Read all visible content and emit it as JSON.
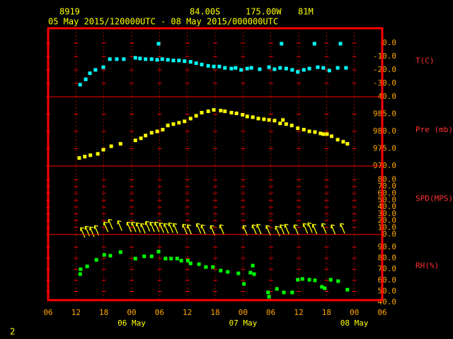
{
  "header": {
    "station": "8919",
    "lat": "84.00S",
    "lon": "175.00W",
    "elev": "81M",
    "period": "05 May 2015/120000UTC - 08 May 2015/000000UTC",
    "page": "2"
  },
  "chart_data": [
    {
      "type": "scatter",
      "ylabel": "T(C)",
      "color": "#00ffff",
      "xlim": [
        0,
        72
      ],
      "ylim": [
        -40,
        11
      ],
      "yticks": [
        {
          "value": 0,
          "label": "0.0"
        },
        {
          "value": -10,
          "label": "-10.0"
        },
        {
          "value": -20,
          "label": "-20.0"
        },
        {
          "value": -30,
          "label": "-30.0"
        },
        {
          "value": -40,
          "label": "-40.0"
        }
      ],
      "x": [
        6.9,
        8.1,
        9,
        10.2,
        11.9,
        13.3,
        14.8,
        16.3,
        18.8,
        19.8,
        21,
        22.3,
        23.5,
        23.8,
        24.6,
        25.8,
        27,
        28.2,
        29.4,
        30.7,
        31.9,
        33.1,
        34.5,
        35.7,
        36.9,
        38.1,
        39.5,
        40.4,
        41.6,
        42.9,
        43.8,
        45.6,
        47.6,
        48.8,
        50,
        50.3,
        51.3,
        52.6,
        53.8,
        55.1,
        56.3,
        57.4,
        58.1,
        59.3,
        60.6,
        62.4,
        63,
        64.2
      ],
      "values": [
        -31,
        -27,
        -22.5,
        -20,
        -18,
        -12,
        -12,
        -12,
        -11,
        -11.5,
        -12,
        -12,
        -12.5,
        -0.5,
        -12,
        -12.5,
        -13,
        -13,
        -13.5,
        -14,
        -15,
        -16,
        -17,
        -17.5,
        -17.5,
        -18.5,
        -19,
        -18.5,
        -20,
        -19,
        -18.5,
        -19.5,
        -18,
        -19.5,
        -18.5,
        -0.5,
        -19,
        -20,
        -21.5,
        -20,
        -19,
        -0.5,
        -18,
        -18.5,
        -20.5,
        -18.5,
        -0.5,
        -18.5
      ]
    },
    {
      "type": "scatter",
      "ylabel": "Pre (mb)",
      "color": "#ffff00",
      "xlim": [
        0,
        72
      ],
      "ylim": [
        970,
        990
      ],
      "yticks": [
        {
          "value": 985,
          "label": "985.0"
        },
        {
          "value": 980,
          "label": "980.0"
        },
        {
          "value": 975,
          "label": "975.0"
        },
        {
          "value": 970,
          "label": "970.0"
        }
      ],
      "x": [
        6.7,
        7.9,
        9.1,
        10.7,
        11.9,
        13.6,
        15.6,
        18.8,
        20,
        21,
        22.3,
        23.5,
        24.7,
        25.8,
        27,
        28.2,
        29.4,
        30.7,
        31.9,
        33.1,
        34.5,
        35.7,
        37.2,
        38.1,
        39.5,
        40.6,
        41.9,
        42.9,
        44.1,
        45.3,
        46.5,
        47.6,
        48.8,
        50,
        50.6,
        51.3,
        52.5,
        53.8,
        55.1,
        56.3,
        57.5,
        58.7,
        59.3,
        60.1,
        61.1,
        62.4,
        63.6,
        64.5
      ],
      "values": [
        972.3,
        972.7,
        973.1,
        973.5,
        974.7,
        975.7,
        976.4,
        977.4,
        978,
        978.8,
        979.6,
        980,
        980.5,
        981.7,
        982.1,
        982.5,
        982.9,
        983.7,
        984.5,
        985.4,
        985.8,
        986.2,
        986,
        985.8,
        985.4,
        985.2,
        984.8,
        984.3,
        984.1,
        983.7,
        983.5,
        983.3,
        983.1,
        982.3,
        983.3,
        982.1,
        981.7,
        980.9,
        980.5,
        980,
        979.8,
        979.4,
        979.2,
        979.2,
        978.6,
        977.6,
        977,
        976.4
      ]
    },
    {
      "type": "wind",
      "ylabel": "SPD(MPS)",
      "color": "#ffff00",
      "xlim": [
        0,
        72
      ],
      "ylim": [
        0,
        100
      ],
      "yticks": [
        {
          "value": 80,
          "label": "80.0"
        },
        {
          "value": 70,
          "label": "70.0"
        },
        {
          "value": 60,
          "label": "60.0"
        },
        {
          "value": 50,
          "label": "50.0"
        },
        {
          "value": 40,
          "label": "40.0"
        },
        {
          "value": 30,
          "label": "30.0"
        },
        {
          "value": 20,
          "label": "20.0"
        },
        {
          "value": 10,
          "label": "10.0"
        },
        {
          "value": 0,
          "label": "0.0"
        }
      ],
      "x": [
        7,
        8,
        9,
        10,
        12,
        13,
        15,
        17,
        18,
        19,
        20,
        21,
        22,
        23,
        24,
        25,
        26,
        27,
        29,
        30,
        32,
        33,
        35,
        37,
        42,
        44,
        45,
        47,
        49,
        50,
        51,
        53,
        55,
        56,
        57,
        59,
        61,
        63
      ],
      "values": [
        10,
        12,
        11,
        13,
        18,
        22,
        20,
        18,
        18,
        17,
        16,
        19,
        18,
        18,
        17,
        16,
        17,
        16,
        15,
        14,
        16,
        14,
        13,
        14,
        13,
        14,
        15,
        13,
        12,
        14,
        15,
        14,
        16,
        17,
        15,
        16,
        14,
        16
      ]
    },
    {
      "type": "scatter",
      "ylabel": "RH(%)",
      "color": "#00ff00",
      "xlim": [
        0,
        72
      ],
      "ylim": [
        42,
        101.5
      ],
      "yticks": [
        {
          "value": 90,
          "label": "90.0"
        },
        {
          "value": 80,
          "label": "80.0"
        },
        {
          "value": 70,
          "label": "70.0"
        },
        {
          "value": 60,
          "label": "60.0"
        },
        {
          "value": 50,
          "label": "50.0"
        },
        {
          "value": 40,
          "label": "40.0"
        }
      ],
      "x": [
        6.9,
        7,
        8.4,
        10.4,
        12.1,
        13.4,
        15.6,
        18.8,
        20.7,
        22.3,
        23.8,
        25.3,
        26.5,
        27.8,
        28.7,
        30.1,
        30.7,
        32.5,
        34,
        35.5,
        37.2,
        38.7,
        41,
        42.2,
        43.6,
        44.1,
        44.4,
        47.4,
        47.6,
        49.3,
        50.8,
        52.6,
        53.8,
        54.8,
        56.3,
        57.5,
        59,
        59.6,
        60.9,
        62.5,
        64.5
      ],
      "values": [
        65.6,
        70,
        72.6,
        78.5,
        83,
        82.3,
        85.5,
        79.7,
        81.7,
        81.7,
        86,
        79.7,
        79.7,
        79.7,
        77.8,
        77.8,
        75.3,
        74.6,
        72,
        72,
        68.8,
        67.6,
        66.3,
        56.7,
        66.9,
        73.3,
        65.6,
        49,
        45.1,
        52.2,
        49,
        49,
        60.5,
        61.2,
        60.5,
        59.9,
        54.1,
        52.8,
        60.5,
        59.2,
        51.5
      ],
      "xticks": [
        {
          "value": 0,
          "label": "06"
        },
        {
          "value": 6,
          "label": "12"
        },
        {
          "value": 12,
          "label": "18"
        },
        {
          "value": 18,
          "label": "00"
        },
        {
          "value": 24,
          "label": "06"
        },
        {
          "value": 30,
          "label": "12"
        },
        {
          "value": 36,
          "label": "18"
        },
        {
          "value": 42,
          "label": "00"
        },
        {
          "value": 48,
          "label": "06"
        },
        {
          "value": 54,
          "label": "12"
        },
        {
          "value": 60,
          "label": "18"
        },
        {
          "value": 66,
          "label": "00"
        },
        {
          "value": 72,
          "label": "06"
        }
      ],
      "date_labels": [
        {
          "value": 18,
          "label": "06 May"
        },
        {
          "value": 42,
          "label": "07 May"
        },
        {
          "value": 66,
          "label": "08 May"
        }
      ]
    }
  ]
}
